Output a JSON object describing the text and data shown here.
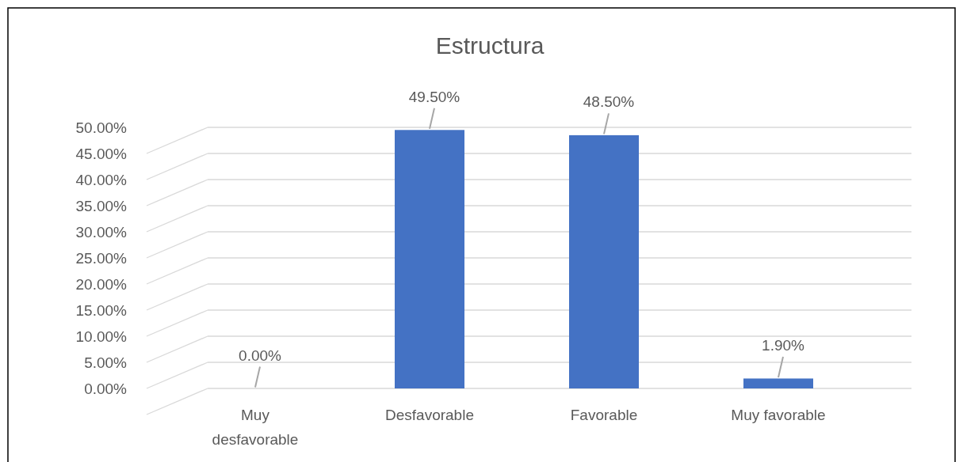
{
  "chart_data": {
    "type": "bar",
    "title": "Estructura",
    "categories": [
      "Muy desfavorable",
      "Desfavorable",
      "Favorable",
      "Muy favorable"
    ],
    "values": [
      0,
      49.5,
      48.5,
      1.9
    ],
    "value_labels": [
      "0.00%",
      "49.50%",
      "48.50%",
      "1.90%"
    ],
    "color": "#4472c4",
    "ylim": [
      0,
      50
    ],
    "yticks": [
      {
        "value": 0,
        "label": "0.00%"
      },
      {
        "value": 5,
        "label": "5.00%"
      },
      {
        "value": 10,
        "label": "10.00%"
      },
      {
        "value": 15,
        "label": "15.00%"
      },
      {
        "value": 20,
        "label": "20.00%"
      },
      {
        "value": 25,
        "label": "25.00%"
      },
      {
        "value": 30,
        "label": "30.00%"
      },
      {
        "value": 35,
        "label": "35.00%"
      },
      {
        "value": 40,
        "label": "40.00%"
      },
      {
        "value": 45,
        "label": "45.00%"
      },
      {
        "value": 50,
        "label": "50.00%"
      }
    ],
    "grid": true
  }
}
